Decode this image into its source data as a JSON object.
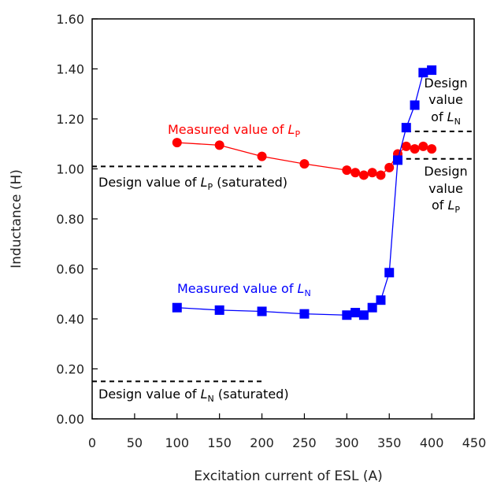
{
  "chart_data": {
    "type": "line",
    "xlabel": "Excitation current of ESL (A)",
    "ylabel": "Inductance (H)",
    "xlim": [
      0,
      450
    ],
    "ylim": [
      0,
      1.6
    ],
    "x_ticks": [
      "0",
      "50",
      "100",
      "150",
      "200",
      "250",
      "300",
      "350",
      "400",
      "450"
    ],
    "y_ticks": [
      "0.00",
      "0.20",
      "0.40",
      "0.60",
      "0.80",
      "1.00",
      "1.20",
      "1.40",
      "1.60"
    ],
    "grid": false,
    "series": [
      {
        "name": "Measured value of LP",
        "color": "#ff0000",
        "marker": "circle",
        "x": [
          100,
          150,
          200,
          250,
          300,
          310,
          320,
          330,
          340,
          350,
          360,
          370,
          380,
          390,
          400
        ],
        "y": [
          1.105,
          1.095,
          1.05,
          1.02,
          0.995,
          0.985,
          0.975,
          0.985,
          0.975,
          1.005,
          1.06,
          1.09,
          1.08,
          1.09,
          1.08
        ]
      },
      {
        "name": "Measured value of LN",
        "color": "#0000ff",
        "marker": "square",
        "x": [
          100,
          150,
          200,
          250,
          300,
          310,
          320,
          330,
          340,
          350,
          360,
          370,
          380,
          390,
          400
        ],
        "y": [
          0.445,
          0.435,
          0.43,
          0.42,
          0.415,
          0.425,
          0.415,
          0.445,
          0.475,
          0.585,
          1.035,
          1.165,
          1.255,
          1.385,
          1.395
        ]
      }
    ],
    "reference_lines": [
      {
        "x1": 0,
        "x2": 200,
        "y": 1.01,
        "color": "#000000"
      },
      {
        "x1": 0,
        "x2": 200,
        "y": 0.15,
        "color": "#000000"
      },
      {
        "x1": 370,
        "x2": 450,
        "y": 1.15,
        "color": "#000000"
      },
      {
        "x1": 370,
        "x2": 450,
        "y": 1.04,
        "color": "#000000"
      }
    ],
    "annotations": {
      "lp_measured": {
        "text": "Measured value of ",
        "sym": "L",
        "sub": "P",
        "color": "#ff0000"
      },
      "ln_measured": {
        "text": "Measured value of ",
        "sym": "L",
        "sub": "N",
        "color": "#0000ff"
      },
      "lp_sat": {
        "text": "Design value of ",
        "sym": "L",
        "sub": "P",
        "suffix": " (saturated)",
        "color": "#000000"
      },
      "ln_sat": {
        "text": "Design value of ",
        "sym": "L",
        "sub": "N",
        "suffix": " (saturated)",
        "color": "#000000"
      },
      "ln_design": {
        "line1": "Design",
        "line2": "value",
        "line3": "of ",
        "sym": "L",
        "sub": "N",
        "color": "#000000"
      },
      "lp_design": {
        "line1": "Design",
        "line2": "value",
        "line3": "of ",
        "sym": "L",
        "sub": "P",
        "color": "#000000"
      }
    }
  }
}
